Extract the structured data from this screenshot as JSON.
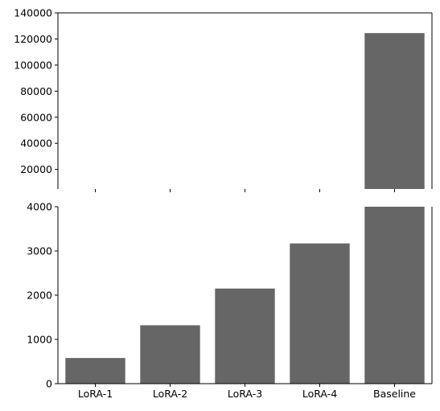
{
  "chart_data": {
    "type": "bar",
    "broken_axis": true,
    "categories": [
      "LoRA-1",
      "LoRA-2",
      "LoRA-3",
      "LoRA-4",
      "Baseline"
    ],
    "values": [
      580,
      1320,
      2150,
      3170,
      124500
    ],
    "bar_color": "#666666",
    "title": "",
    "xlabel": "",
    "ylabel": "",
    "grid": false,
    "upper_panel": {
      "ylim": [
        5000,
        140000
      ],
      "yticks": [
        20000,
        40000,
        60000,
        80000,
        100000,
        120000,
        140000
      ],
      "ytick_labels": [
        "20000",
        "40000",
        "60000",
        "80000",
        "100000",
        "120000",
        "140000"
      ]
    },
    "lower_panel": {
      "ylim": [
        0,
        4000
      ],
      "yticks": [
        0,
        1000,
        2000,
        3000,
        4000
      ],
      "ytick_labels": [
        "0",
        "1000",
        "2000",
        "3000",
        "4000"
      ]
    }
  }
}
